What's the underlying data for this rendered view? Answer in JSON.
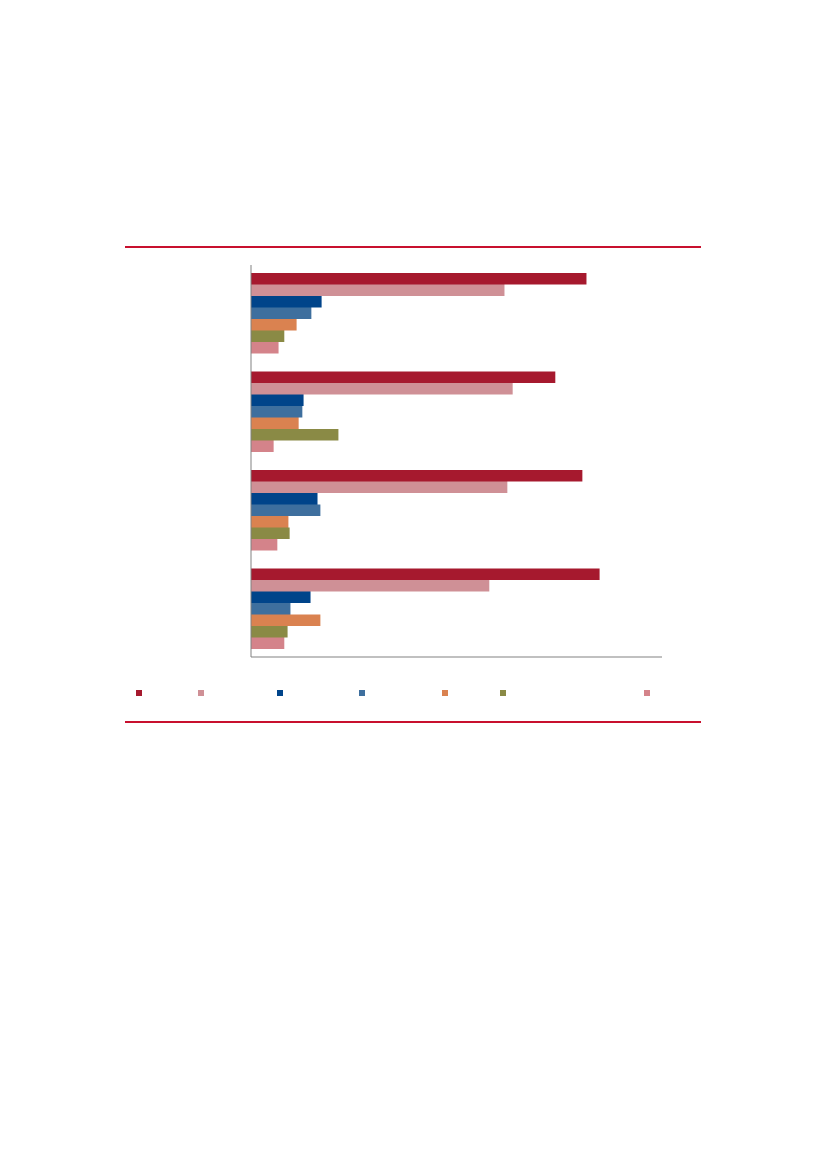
{
  "colors": {
    "rule": "#C8102E",
    "axis": "#808080"
  },
  "chart_data": {
    "type": "bar",
    "orientation": "horizontal",
    "title": "",
    "xlabel": "",
    "ylabel": "",
    "xlim": [
      0,
      100
    ],
    "grid": false,
    "legend_placement": "bottom",
    "categories": [
      "",
      "",
      "",
      ""
    ],
    "series": [
      {
        "color": "#A6192E",
        "values": [
          81.7,
          74.1,
          80.7,
          84.9
        ]
      },
      {
        "color": "#CF9096",
        "values": [
          61.7,
          63.7,
          62.4,
          58.0
        ]
      },
      {
        "color": "#00448A",
        "values": [
          17.1,
          12.7,
          16.1,
          14.4
        ]
      },
      {
        "color": "#3E6F9E",
        "values": [
          14.6,
          12.4,
          16.8,
          9.5
        ]
      },
      {
        "color": "#DA8250",
        "values": [
          11.0,
          11.5,
          9.0,
          16.8
        ]
      },
      {
        "color": "#8A8A45",
        "values": [
          8.0,
          21.2,
          9.3,
          8.8
        ]
      },
      {
        "color": "#D4838A",
        "values": [
          6.6,
          5.4,
          6.3,
          8.0
        ]
      }
    ]
  }
}
